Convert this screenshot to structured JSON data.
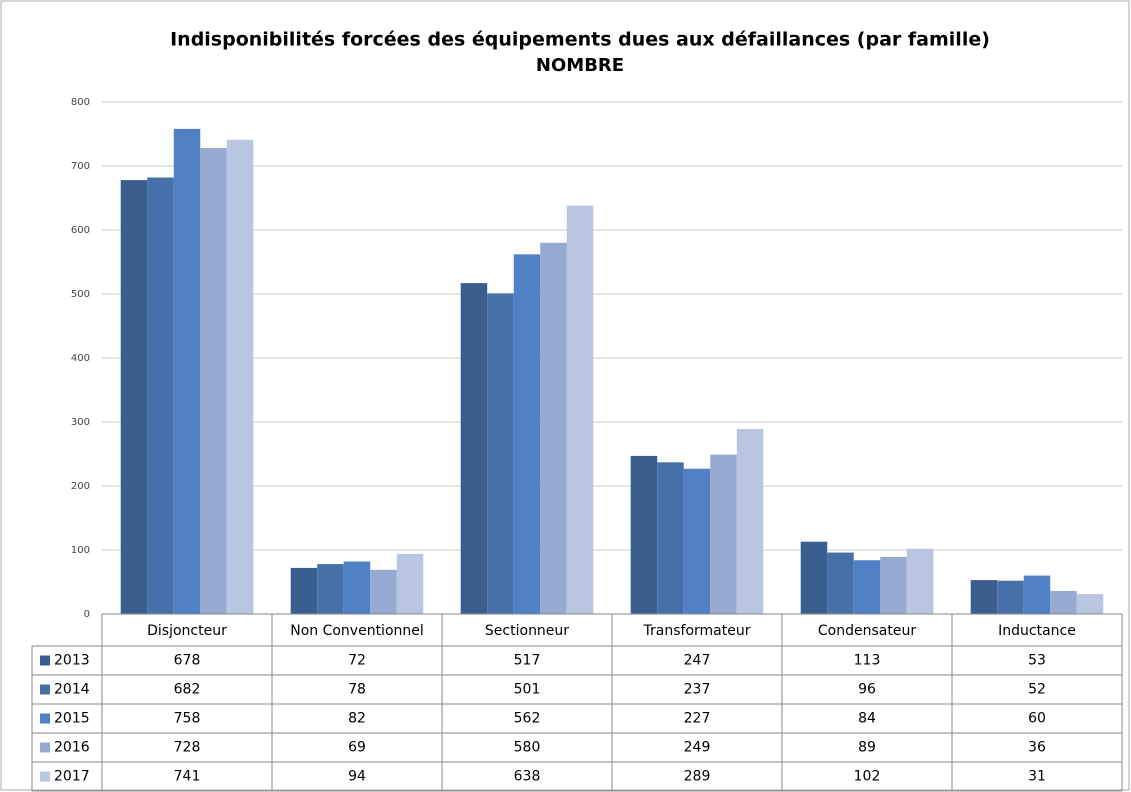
{
  "chart_data": {
    "type": "bar",
    "title": "Indisponibilités forcées des équipements dues aux défaillances (par famille)",
    "subtitle": "NOMBRE",
    "categories": [
      "Disjoncteur",
      "Non Conventionnel",
      "Sectionneur",
      "Transformateur",
      "Condensateur",
      "Inductance"
    ],
    "series": [
      {
        "name": "2013",
        "color": "#3a5f8f",
        "values": [
          678,
          72,
          517,
          247,
          113,
          53
        ]
      },
      {
        "name": "2014",
        "color": "#4571a8",
        "values": [
          682,
          78,
          501,
          237,
          96,
          52
        ]
      },
      {
        "name": "2015",
        "color": "#4f81c4",
        "values": [
          758,
          82,
          562,
          227,
          84,
          60
        ]
      },
      {
        "name": "2016",
        "color": "#95a9d1",
        "values": [
          728,
          69,
          580,
          249,
          89,
          36
        ]
      },
      {
        "name": "2017",
        "color": "#b9c6e2",
        "values": [
          741,
          94,
          638,
          289,
          102,
          31
        ]
      }
    ],
    "ylim": [
      0,
      800
    ],
    "yticks": [
      0,
      100,
      200,
      300,
      400,
      500,
      600,
      700,
      800
    ],
    "grid": true
  }
}
